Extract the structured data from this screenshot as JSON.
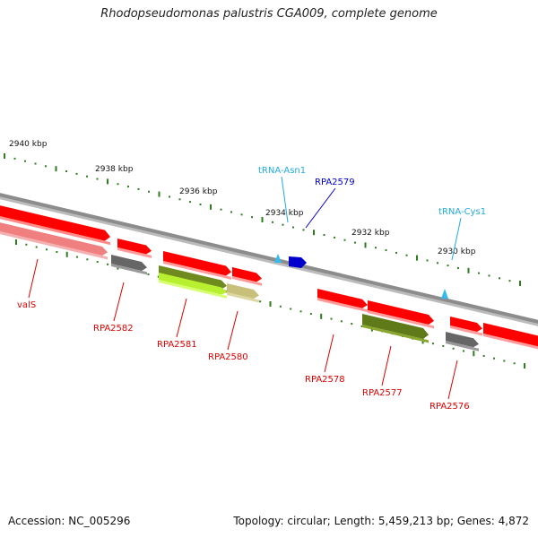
{
  "title": "Rhodopseudomonas palustris CGA009, complete genome",
  "accession": "Accession: NC_005296",
  "summary": "Topology: circular; Length: 5,459,213 bp; Genes: 4,872",
  "colors": {
    "backbone": "#8c8c8c",
    "tick": "#2e7d1e",
    "cds": "#ff0000",
    "trna": "#33bbee",
    "highlight_gene": "#0000cc",
    "label_red": "#dd0000",
    "label_cyan": "#22aadd",
    "label_blue": "#0000cc"
  },
  "scale_labels": [
    "2940 kbp",
    "2938 kbp",
    "2936 kbp",
    "2934 kbp",
    "2932 kbp",
    "2930 kbp"
  ],
  "genes": [
    {
      "name": "valS",
      "color": "#ff0000"
    },
    {
      "name": "RPA2582",
      "color": "#ff0000"
    },
    {
      "name": "RPA2581",
      "color": "#ff0000"
    },
    {
      "name": "RPA2580",
      "color": "#ff0000"
    },
    {
      "name": "RPA2578",
      "color": "#ff0000"
    },
    {
      "name": "RPA2577",
      "color": "#ff0000"
    },
    {
      "name": "RPA2576",
      "color": "#ff0000"
    },
    {
      "name": "tRNA-Asn1",
      "color": "#33bbee"
    },
    {
      "name": "RPA2579",
      "color": "#0000cc"
    },
    {
      "name": "tRNA-Cys1",
      "color": "#33bbee"
    }
  ]
}
